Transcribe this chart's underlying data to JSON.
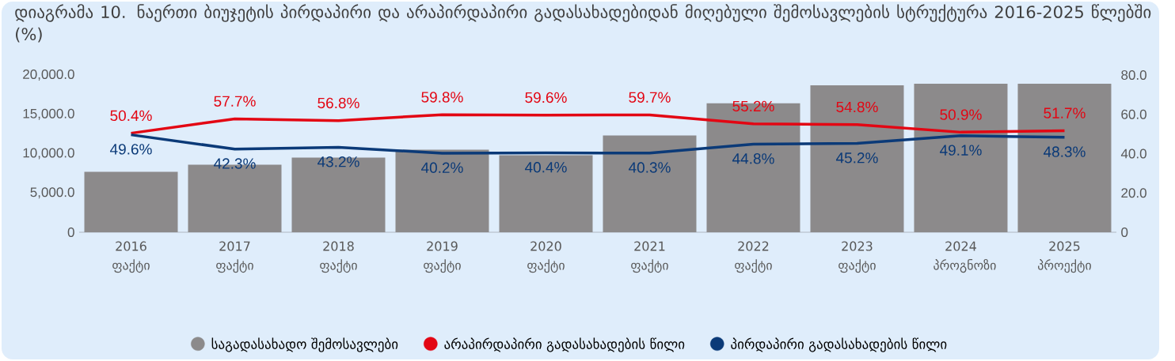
{
  "chart_data": {
    "type": "bar",
    "title": "დიაგრამა 10. ნაერთი ბიუჯეტის პირდაპირი და არაპირდაპირი გადასახადებიდან მიღებული შემოსავლების სტრუქტურა 2016-2025 წლებში (%)",
    "categories": [
      "2016 ფაქტი",
      "2017 ფაქტი",
      "2018 ფაქტი",
      "2019 ფაქტი",
      "2020 ფაქტი",
      "2021 ფაქტი",
      "2022 ფაქტი",
      "2023 ფაქტი",
      "2024 პროგნოზი",
      "2025 პროექტი"
    ],
    "ylim": [
      0,
      20000
    ],
    "yticks": [
      0,
      {
        "value": 5000,
        "label": "5,000.0"
      },
      {
        "value": 10000,
        "label": "10,000.0"
      },
      {
        "value": 15000,
        "label": "15,000.0"
      },
      {
        "value": 20000,
        "label": "20,000.0"
      }
    ],
    "y2lim": [
      0,
      80
    ],
    "y2ticks": [
      0,
      {
        "value": 20,
        "label": "20.0"
      },
      {
        "value": 40,
        "label": "40.0"
      },
      {
        "value": 60,
        "label": "60.0"
      },
      {
        "value": 80,
        "label": "80.0"
      }
    ],
    "legend": "bottom",
    "marker": "none",
    "series": [
      {
        "name": "საგადასახადო შემოსავლები",
        "color": "#8c8a8b",
        "values": [
          7700,
          8600,
          9500,
          10500,
          9800,
          12300,
          16400,
          18700,
          18900,
          18900
        ]
      },
      {
        "name": "არაპირდაპირი გადასახადების წილი",
        "type": "line",
        "axis": "y2",
        "color": "#e30613",
        "values": [
          50.4,
          57.7,
          56.8,
          59.8,
          59.6,
          59.7,
          55.2,
          54.8,
          50.9,
          51.7
        ],
        "value_labels": [
          "50.4%",
          "57.7%",
          "56.8%",
          "59.8%",
          "59.6%",
          "59.7%",
          "55.2%",
          "54.8%",
          "50.9%",
          "51.7%"
        ]
      },
      {
        "name": "პირდაპირი გადასახადების წილი",
        "type": "line",
        "axis": "y2",
        "color": "#0b3a78",
        "values": [
          49.6,
          42.3,
          43.2,
          40.2,
          40.4,
          40.3,
          44.8,
          45.2,
          49.1,
          48.3
        ],
        "value_labels": [
          "49.6%",
          "42.3%",
          "43.2%",
          "40.2%",
          "40.4%",
          "40.3%",
          "44.8%",
          "45.2%",
          "49.1%",
          "48.3%"
        ]
      }
    ]
  }
}
